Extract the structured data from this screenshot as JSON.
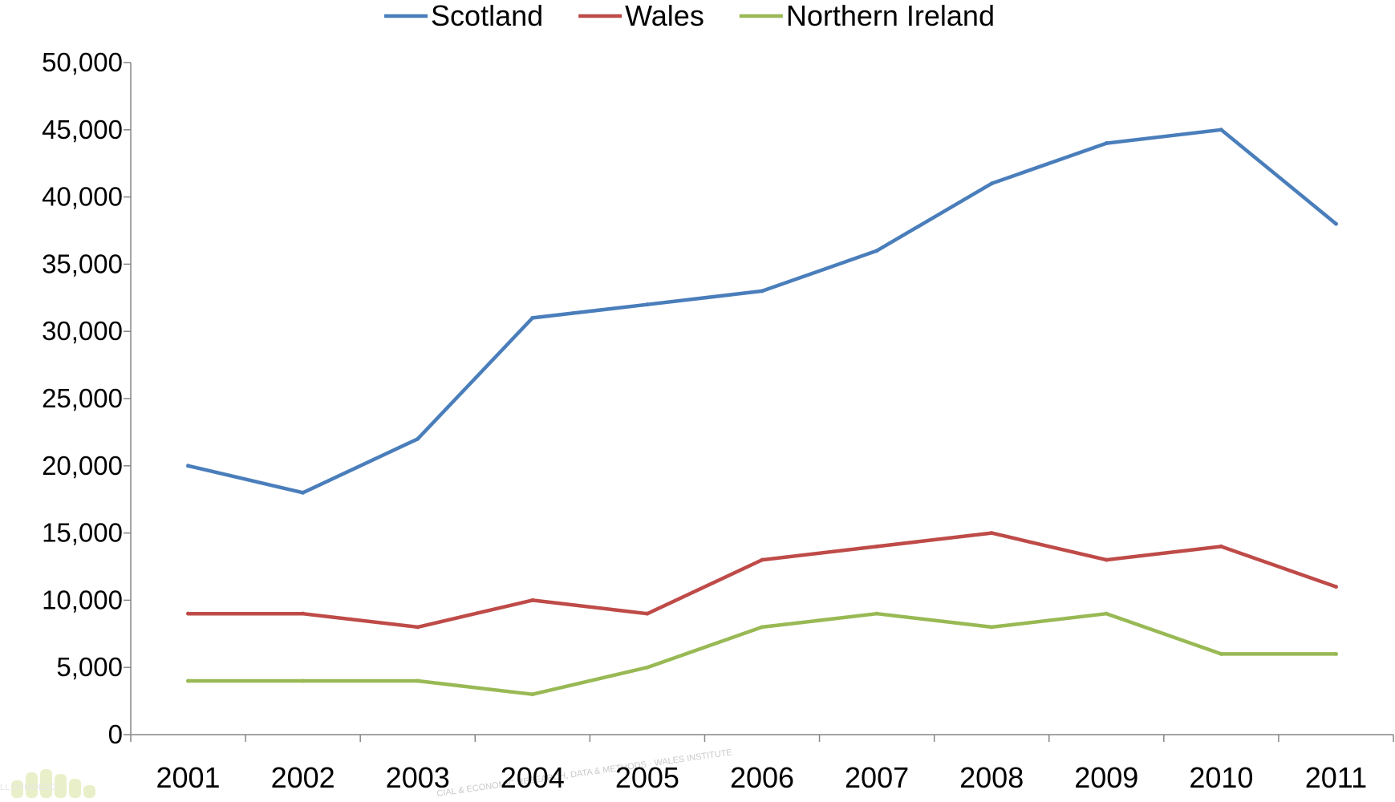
{
  "chart_data": {
    "type": "line",
    "title": "",
    "xlabel": "",
    "ylabel": "",
    "categories": [
      "2001",
      "2002",
      "2003",
      "2004",
      "2005",
      "2006",
      "2007",
      "2008",
      "2009",
      "2010",
      "2011"
    ],
    "series": [
      {
        "name": "Scotland",
        "color": "#4a7ebb",
        "values": [
          20000,
          18000,
          22000,
          31000,
          32000,
          33000,
          36000,
          41000,
          44000,
          45000,
          38000
        ]
      },
      {
        "name": "Wales",
        "color": "#be4b48",
        "values": [
          9000,
          9000,
          8000,
          10000,
          9000,
          13000,
          14000,
          15000,
          13000,
          14000,
          11000
        ]
      },
      {
        "name": "Northern Ireland",
        "color": "#98b954",
        "values": [
          4000,
          4000,
          4000,
          3000,
          5000,
          8000,
          9000,
          8000,
          9000,
          6000,
          6000
        ]
      }
    ],
    "ylim": [
      0,
      50000
    ],
    "y_ticks": [
      0,
      5000,
      10000,
      15000,
      20000,
      25000,
      30000,
      35000,
      40000,
      45000,
      50000
    ],
    "y_tick_labels": [
      "0",
      "5,000",
      "10,000",
      "15,000",
      "20,000",
      "25,000",
      "30,000",
      "35,000",
      "40,000",
      "45,000",
      "50,000"
    ],
    "grid": false,
    "legend_position": "top"
  },
  "watermark": {
    "logo_text": "LL DYMOEDD",
    "center_text": "CIAL & ECONOMIC RESEARCH, DATA & METHODS · WALES INSTITUTE"
  }
}
